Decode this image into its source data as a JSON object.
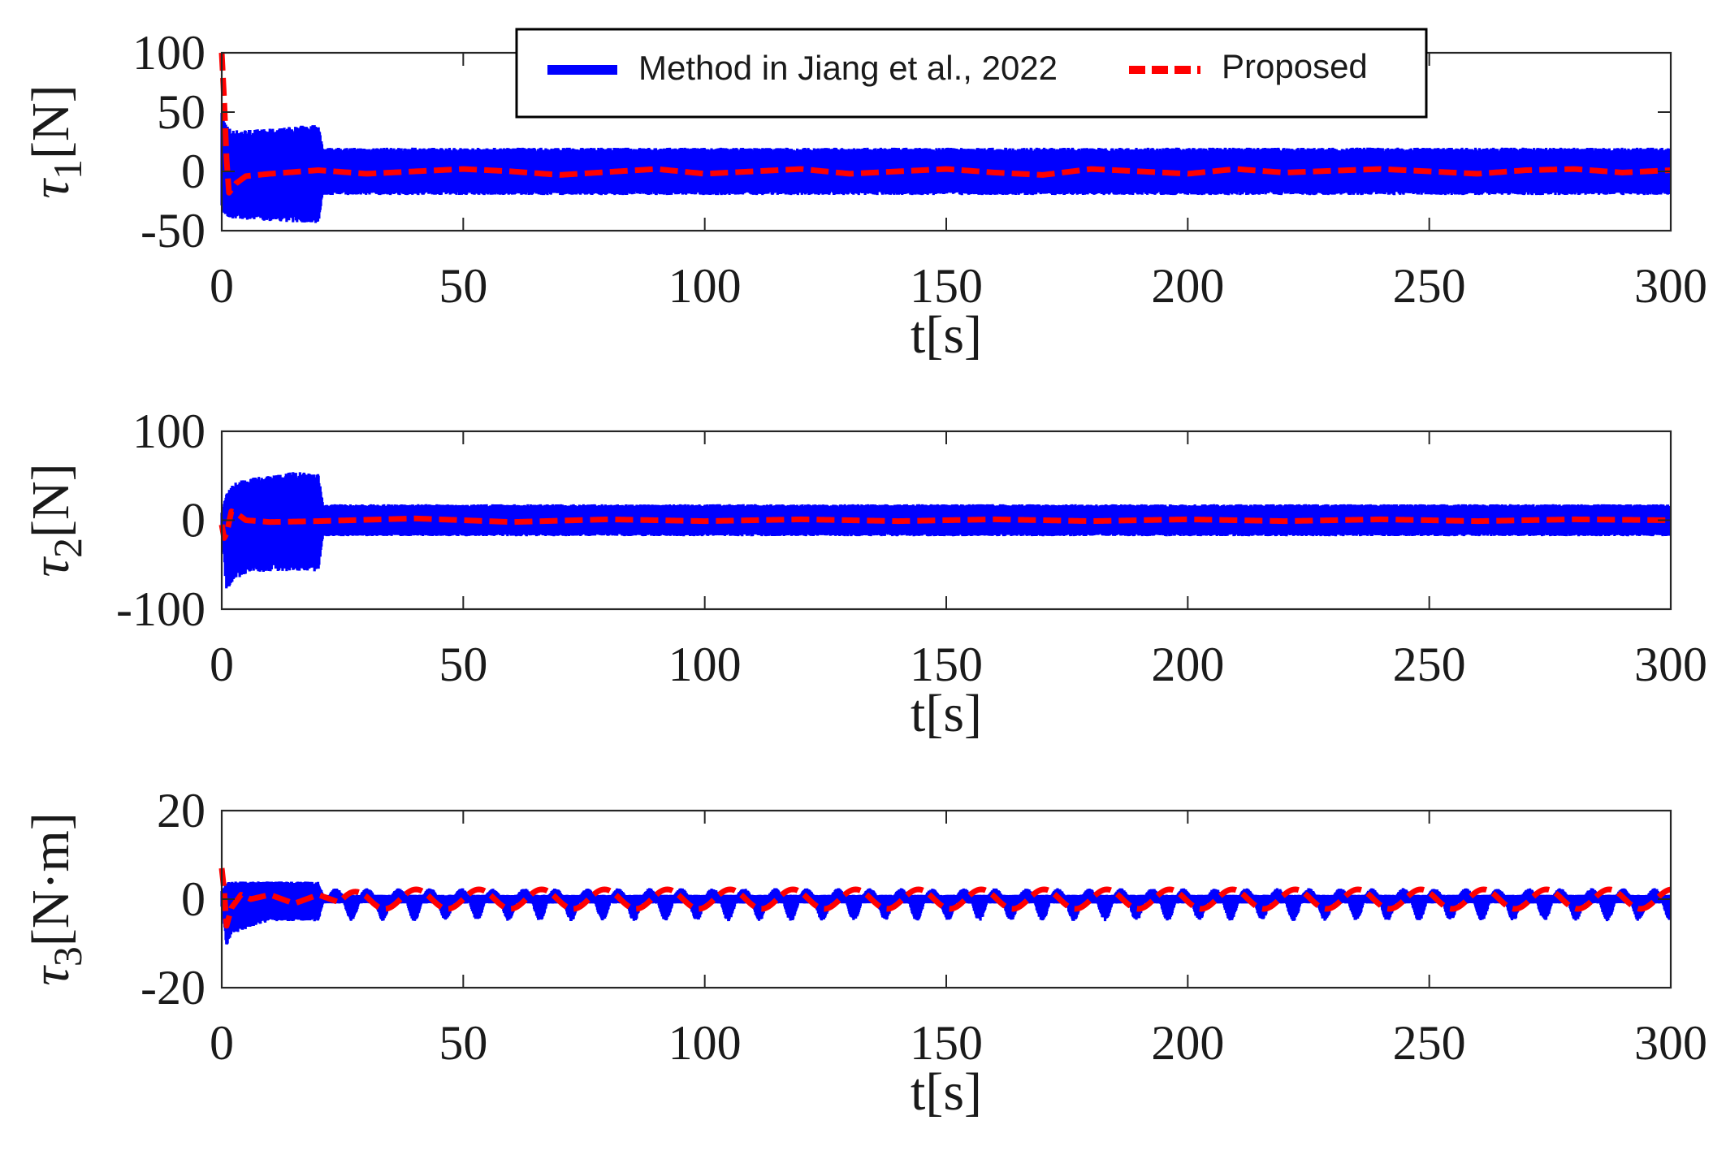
{
  "chart_data": [
    {
      "type": "line",
      "ylabel_symbol": "τ",
      "ylabel_sub": "1",
      "ylabel_unit": "[N]",
      "xlabel": "t[s]",
      "xlim": [
        0,
        300
      ],
      "ylim": [
        -50,
        100
      ],
      "xticks": [
        0,
        50,
        100,
        150,
        200,
        250,
        300
      ],
      "yticks": [
        -50,
        0,
        50,
        100
      ],
      "xtick_labels": [
        "0",
        "50",
        "100",
        "150",
        "200",
        "250",
        "300"
      ],
      "ytick_labels": [
        "-50",
        "0",
        "50",
        "100"
      ],
      "series": [
        {
          "name": "Method in Jiang et al., 2022",
          "color": "#0000ff",
          "style": "solid-band",
          "envelope": [
            [
              0,
              -35,
              50
            ],
            [
              1,
              -38,
              40
            ],
            [
              2,
              -40,
              35
            ],
            [
              10,
              -42,
              36
            ],
            [
              20,
              -44,
              40
            ],
            [
              21,
              -20,
              20
            ],
            [
              300,
              -20,
              20
            ]
          ]
        },
        {
          "name": "Proposed",
          "color": "#ff0000",
          "style": "dashed",
          "points": [
            [
              0,
              100
            ],
            [
              0.5,
              60
            ],
            [
              1,
              10
            ],
            [
              1.5,
              -18
            ],
            [
              3,
              -10
            ],
            [
              5,
              -4
            ],
            [
              10,
              -2
            ],
            [
              20,
              1
            ],
            [
              30,
              -2
            ],
            [
              50,
              2
            ],
            [
              60,
              0
            ],
            [
              70,
              -3
            ],
            [
              90,
              2
            ],
            [
              100,
              -2
            ],
            [
              120,
              2
            ],
            [
              130,
              -2
            ],
            [
              150,
              2
            ],
            [
              160,
              -1
            ],
            [
              170,
              -3
            ],
            [
              180,
              2
            ],
            [
              200,
              -2
            ],
            [
              210,
              2
            ],
            [
              220,
              -1
            ],
            [
              240,
              2
            ],
            [
              250,
              0
            ],
            [
              260,
              -2
            ],
            [
              270,
              1
            ],
            [
              280,
              2
            ],
            [
              290,
              -1
            ],
            [
              300,
              1
            ]
          ]
        }
      ]
    },
    {
      "type": "line",
      "ylabel_symbol": "τ",
      "ylabel_sub": "2",
      "ylabel_unit": "[N]",
      "xlabel": "t[s]",
      "xlim": [
        0,
        300
      ],
      "ylim": [
        -100,
        100
      ],
      "xticks": [
        0,
        50,
        100,
        150,
        200,
        250,
        300
      ],
      "yticks": [
        -100,
        0,
        100
      ],
      "xtick_labels": [
        "0",
        "50",
        "100",
        "150",
        "200",
        "250",
        "300"
      ],
      "ytick_labels": [
        "-100",
        "0",
        "100"
      ],
      "series": [
        {
          "name": "Method in Jiang et al., 2022",
          "color": "#0000ff",
          "style": "solid-band",
          "envelope": [
            [
              0,
              -10,
              10
            ],
            [
              1,
              -85,
              30
            ],
            [
              2,
              -70,
              40
            ],
            [
              5,
              -60,
              48
            ],
            [
              10,
              -58,
              50
            ],
            [
              15,
              -57,
              55
            ],
            [
              20,
              -58,
              52
            ],
            [
              21,
              -18,
              18
            ],
            [
              300,
              -18,
              18
            ]
          ]
        },
        {
          "name": "Proposed",
          "color": "#ff0000",
          "style": "dashed",
          "points": [
            [
              0,
              -5
            ],
            [
              0.5,
              -20
            ],
            [
              1,
              -15
            ],
            [
              2,
              10
            ],
            [
              3,
              8
            ],
            [
              5,
              0
            ],
            [
              10,
              -2
            ],
            [
              20,
              -1
            ],
            [
              40,
              2
            ],
            [
              60,
              -2
            ],
            [
              80,
              1
            ],
            [
              100,
              -1
            ],
            [
              120,
              1
            ],
            [
              140,
              -1
            ],
            [
              160,
              1
            ],
            [
              180,
              -1
            ],
            [
              200,
              1
            ],
            [
              220,
              -1
            ],
            [
              240,
              1
            ],
            [
              260,
              -1
            ],
            [
              280,
              1
            ],
            [
              300,
              0
            ]
          ]
        }
      ]
    },
    {
      "type": "line",
      "ylabel_symbol": "τ",
      "ylabel_sub": "3",
      "ylabel_unit": "[N·m]",
      "xlabel": "t[s]",
      "xlim": [
        0,
        300
      ],
      "ylim": [
        -20,
        20
      ],
      "xticks": [
        0,
        50,
        100,
        150,
        200,
        250,
        300
      ],
      "yticks": [
        -20,
        0,
        20
      ],
      "xtick_labels": [
        "0",
        "50",
        "100",
        "150",
        "200",
        "250",
        "300"
      ],
      "ytick_labels": [
        "-20",
        "0",
        "20"
      ],
      "series": [
        {
          "name": "Method in Jiang et al., 2022",
          "color": "#0000ff",
          "style": "solid-band",
          "envelope": [
            [
              0,
              -2,
              2
            ],
            [
              1,
              -11,
              4
            ],
            [
              2,
              -8,
              4
            ],
            [
              10,
              -5,
              4
            ],
            [
              20,
              -5,
              4
            ],
            [
              21,
              -1,
              1
            ],
            [
              300,
              -1,
              1
            ]
          ],
          "periodic": {
            "start": 22,
            "period": 6.5,
            "amplitude_low": -4.5,
            "amplitude_high": 2
          }
        },
        {
          "name": "Proposed",
          "color": "#ff0000",
          "style": "dashed",
          "points": [
            [
              0,
              7
            ],
            [
              0.5,
              2
            ],
            [
              1,
              -6
            ],
            [
              2,
              -2
            ],
            [
              4,
              1
            ],
            [
              6,
              0
            ],
            [
              10,
              1
            ],
            [
              15,
              -1
            ],
            [
              20,
              1
            ],
            [
              25,
              -1
            ],
            [
              30,
              0
            ],
            [
              300,
              0
            ]
          ],
          "periodic": {
            "start": 24,
            "period": 13,
            "amplitude": 2.2
          }
        }
      ]
    }
  ],
  "legend": {
    "position": "top-center",
    "entries": [
      {
        "label": "Method in Jiang et al., 2022",
        "color": "#0000ff",
        "style": "solid"
      },
      {
        "label": "Proposed",
        "color": "#ff0000",
        "style": "dashed"
      }
    ]
  }
}
